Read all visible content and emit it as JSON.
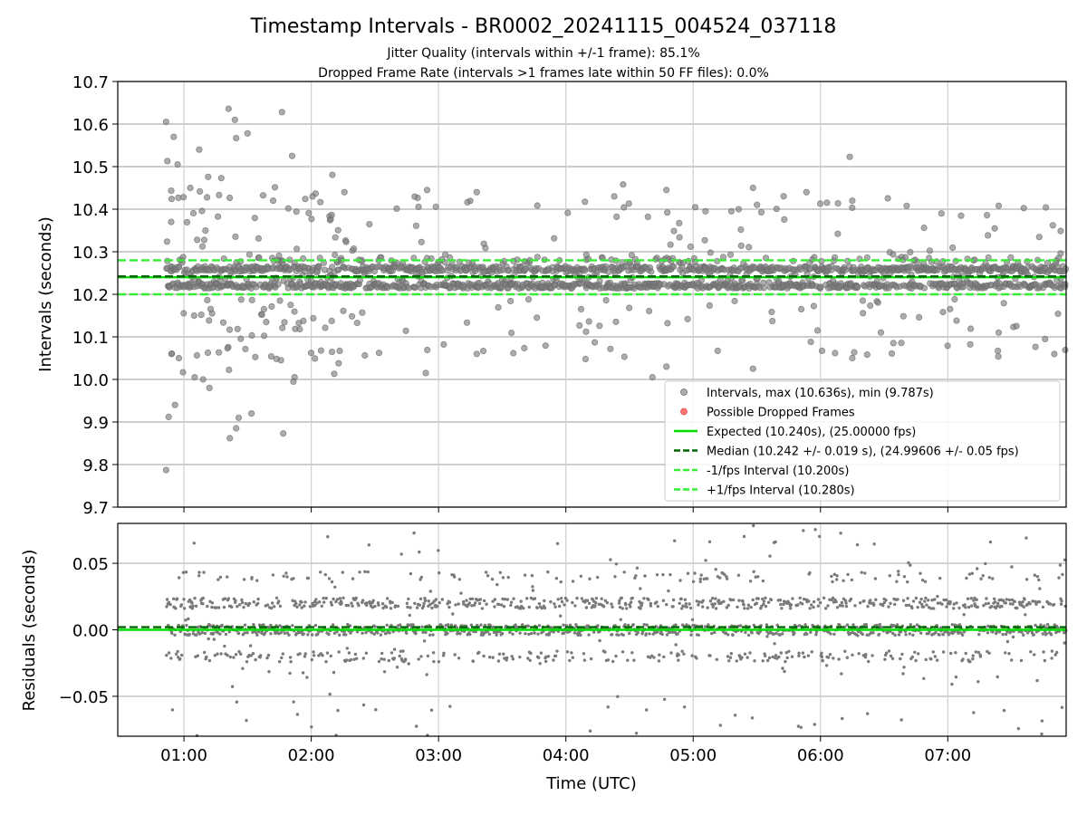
{
  "chart_data": [
    {
      "type": "scatter",
      "title": "Timestamp Intervals - BR0002_20241115_004524_037118",
      "subtitle_lines": [
        "Jitter Quality (intervals within +/-1 frame): 85.1%",
        "Dropped Frame Rate (intervals >1 frames late within 50 FF files): 0.0%"
      ],
      "ylabel": "Intervals (seconds)",
      "xlim_hours": [
        0.48,
        7.93
      ],
      "ylim": [
        9.7,
        10.7
      ],
      "yticks": [
        {
          "v": 9.7,
          "label": "9.7"
        },
        {
          "v": 9.8,
          "label": "9.8"
        },
        {
          "v": 9.9,
          "label": "9.9"
        },
        {
          "v": 10.0,
          "label": "10.0"
        },
        {
          "v": 10.1,
          "label": "10.1"
        },
        {
          "v": 10.2,
          "label": "10.2"
        },
        {
          "v": 10.3,
          "label": "10.3"
        },
        {
          "v": 10.4,
          "label": "10.4"
        },
        {
          "v": 10.5,
          "label": "10.5"
        },
        {
          "v": 10.6,
          "label": "10.6"
        },
        {
          "v": 10.7,
          "label": "10.7"
        }
      ],
      "xticks": [
        {
          "v": 1,
          "label": "01:00"
        },
        {
          "v": 2,
          "label": "02:00"
        },
        {
          "v": 3,
          "label": "03:00"
        },
        {
          "v": 4,
          "label": "04:00"
        },
        {
          "v": 5,
          "label": "05:00"
        },
        {
          "v": 6,
          "label": "06:00"
        },
        {
          "v": 7,
          "label": "07:00"
        }
      ],
      "grid": true,
      "legend_position": "lower-right",
      "series": [
        {
          "name": "Intervals, max (10.636s), min (9.787s)",
          "kind": "scatter",
          "color": "#808080",
          "data_start_hours": 0.86,
          "data_end_hours": 7.93,
          "max": 10.636,
          "min": 9.787,
          "outliers": [
            [
              0.86,
              9.787
            ],
            [
              0.86,
              10.605
            ],
            [
              0.87,
              10.513
            ],
            [
              0.88,
              9.912
            ],
            [
              0.9,
              10.37
            ],
            [
              0.92,
              10.57
            ],
            [
              0.93,
              9.94
            ],
            [
              0.95,
              10.505
            ],
            [
              0.96,
              10.05
            ],
            [
              1.05,
              10.45
            ],
            [
              1.08,
              10.15
            ],
            [
              1.12,
              10.54
            ],
            [
              1.15,
              10.0
            ],
            [
              1.19,
              10.476
            ],
            [
              1.2,
              9.98
            ],
            [
              1.35,
              10.636
            ],
            [
              1.36,
              9.862
            ],
            [
              1.4,
              10.61
            ],
            [
              1.41,
              9.885
            ],
            [
              1.41,
              10.567
            ],
            [
              1.43,
              9.91
            ],
            [
              1.5,
              10.578
            ],
            [
              1.53,
              9.92
            ],
            [
              1.7,
              10.42
            ],
            [
              1.77,
              10.628
            ],
            [
              1.78,
              9.873
            ],
            [
              1.85,
              10.525
            ],
            [
              1.86,
              9.995
            ],
            [
              2.01,
              10.43
            ],
            [
              2.26,
              10.44
            ],
            [
              2.91,
              10.445
            ],
            [
              2.9,
              10.015
            ],
            [
              3.3,
              10.44
            ],
            [
              3.3,
              10.06
            ],
            [
              4.38,
              10.43
            ],
            [
              4.45,
              10.458
            ],
            [
              4.68,
              10.005
            ],
            [
              4.79,
              10.445
            ],
            [
              4.79,
              10.03
            ],
            [
              5.3,
              10.395
            ],
            [
              5.47,
              10.45
            ],
            [
              5.47,
              10.025
            ],
            [
              5.89,
              10.44
            ],
            [
              6.23,
              10.523
            ],
            [
              6.25,
              10.42
            ],
            [
              6.25,
              10.05
            ],
            [
              6.95,
              10.39
            ],
            [
              7.4,
              10.408
            ],
            [
              7.4,
              10.11
            ]
          ]
        },
        {
          "name": "Possible Dropped Frames",
          "kind": "scatter",
          "color": "#ff0000",
          "values": []
        },
        {
          "name": "Expected (10.240s), (25.00000 fps)",
          "kind": "hline",
          "y": 10.24,
          "color": "#00e000",
          "style": "solid"
        },
        {
          "name": "Median (10.242 +/- 0.019 s), (24.99606 +/- 0.05 fps)",
          "kind": "hline",
          "y": 10.242,
          "color": "#006400",
          "style": "dashed"
        },
        {
          "name": "-1/fps Interval (10.200s)",
          "kind": "hline",
          "y": 10.2,
          "color": "#33ee33",
          "style": "dashed"
        },
        {
          "name": "+1/fps Interval (10.280s)",
          "kind": "hline",
          "y": 10.28,
          "color": "#33ee33",
          "style": "dashed"
        }
      ]
    },
    {
      "type": "scatter",
      "ylabel": "Residuals (seconds)",
      "xlabel": "Time (UTC)",
      "xlim_hours": [
        0.48,
        7.93
      ],
      "ylim": [
        -0.08,
        0.08
      ],
      "yticks": [
        {
          "v": 0.05,
          "label": "0.05"
        },
        {
          "v": 0.0,
          "label": "0.00"
        },
        {
          "v": -0.05,
          "label": "−0.05"
        }
      ],
      "xticks": [
        {
          "v": 1,
          "label": "01:00"
        },
        {
          "v": 2,
          "label": "02:00"
        },
        {
          "v": 3,
          "label": "03:00"
        },
        {
          "v": 4,
          "label": "04:00"
        },
        {
          "v": 5,
          "label": "05:00"
        },
        {
          "v": 6,
          "label": "06:00"
        },
        {
          "v": 7,
          "label": "07:00"
        }
      ],
      "grid": true,
      "series": [
        {
          "kind": "scatter",
          "color": "#7a7a7a",
          "bands": [
            -0.02,
            0.0,
            0.02,
            0.04
          ],
          "spread": 0.08
        },
        {
          "kind": "hline",
          "y": 0.0,
          "color": "#00e000",
          "style": "solid"
        },
        {
          "kind": "hline",
          "y": 0.002,
          "color": "#006400",
          "style": "dashed"
        }
      ]
    }
  ]
}
